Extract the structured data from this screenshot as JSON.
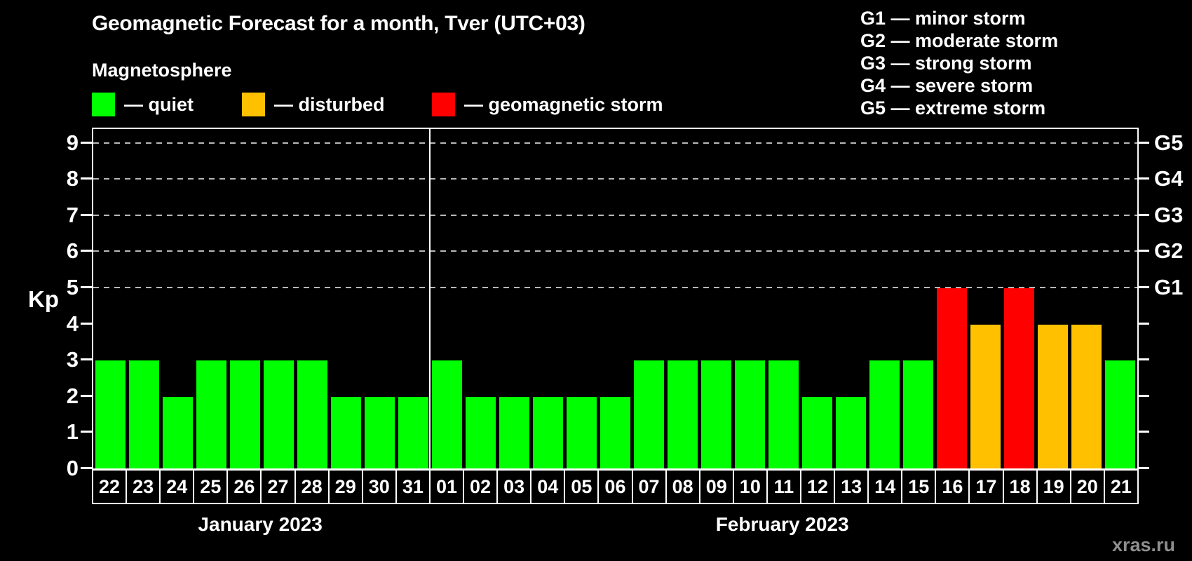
{
  "title": "Geomagnetic Forecast for a month, Tver (UTC+03)",
  "subtitle": "Magnetosphere",
  "watermark": "xras.ru",
  "status_legend": {
    "items": [
      {
        "id": "quiet",
        "label": "— quiet",
        "color": "#00ff00"
      },
      {
        "id": "disturbed",
        "label": "— disturbed",
        "color": "#ffc000"
      },
      {
        "id": "storm",
        "label": "— geomagnetic storm",
        "color": "#ff0000"
      }
    ]
  },
  "g_scale_legend": {
    "items": [
      "G1 — minor storm",
      "G2 — moderate storm",
      "G3 — strong storm",
      "G4 — severe storm",
      "G5 — extreme storm"
    ]
  },
  "chart_data": {
    "type": "bar",
    "title": "Geomagnetic Forecast for a month, Tver (UTC+03)",
    "ylabel": "Kp",
    "ylim": [
      0,
      9
    ],
    "grid": "dashed horizontal at storm levels only",
    "legend_position": "top",
    "y_ticks": [
      0,
      1,
      2,
      3,
      4,
      5,
      6,
      7,
      8,
      9
    ],
    "grid_levels": [
      5,
      6,
      7,
      8,
      9
    ],
    "right_axis_labels": [
      {
        "kp": 5,
        "label": "G1"
      },
      {
        "kp": 6,
        "label": "G2"
      },
      {
        "kp": 7,
        "label": "G3"
      },
      {
        "kp": 8,
        "label": "G4"
      },
      {
        "kp": 9,
        "label": "G5"
      }
    ],
    "status_colors": {
      "quiet": "#00ff00",
      "disturbed": "#ffc000",
      "storm": "#ff0000"
    },
    "months": [
      {
        "label": "January 2023",
        "days": 10
      },
      {
        "label": "February 2023",
        "days": 21
      }
    ],
    "points": [
      {
        "day": "22",
        "kp": 3,
        "status": "quiet"
      },
      {
        "day": "23",
        "kp": 3,
        "status": "quiet"
      },
      {
        "day": "24",
        "kp": 2,
        "status": "quiet"
      },
      {
        "day": "25",
        "kp": 3,
        "status": "quiet"
      },
      {
        "day": "26",
        "kp": 3,
        "status": "quiet"
      },
      {
        "day": "27",
        "kp": 3,
        "status": "quiet"
      },
      {
        "day": "28",
        "kp": 3,
        "status": "quiet"
      },
      {
        "day": "29",
        "kp": 2,
        "status": "quiet"
      },
      {
        "day": "30",
        "kp": 2,
        "status": "quiet"
      },
      {
        "day": "31",
        "kp": 2,
        "status": "quiet"
      },
      {
        "day": "01",
        "kp": 3,
        "status": "quiet"
      },
      {
        "day": "02",
        "kp": 2,
        "status": "quiet"
      },
      {
        "day": "03",
        "kp": 2,
        "status": "quiet"
      },
      {
        "day": "04",
        "kp": 2,
        "status": "quiet"
      },
      {
        "day": "05",
        "kp": 2,
        "status": "quiet"
      },
      {
        "day": "06",
        "kp": 2,
        "status": "quiet"
      },
      {
        "day": "07",
        "kp": 3,
        "status": "quiet"
      },
      {
        "day": "08",
        "kp": 3,
        "status": "quiet"
      },
      {
        "day": "09",
        "kp": 3,
        "status": "quiet"
      },
      {
        "day": "10",
        "kp": 3,
        "status": "quiet"
      },
      {
        "day": "11",
        "kp": 3,
        "status": "quiet"
      },
      {
        "day": "12",
        "kp": 2,
        "status": "quiet"
      },
      {
        "day": "13",
        "kp": 2,
        "status": "quiet"
      },
      {
        "day": "14",
        "kp": 3,
        "status": "quiet"
      },
      {
        "day": "15",
        "kp": 3,
        "status": "quiet"
      },
      {
        "day": "16",
        "kp": 5,
        "status": "storm"
      },
      {
        "day": "17",
        "kp": 4,
        "status": "disturbed"
      },
      {
        "day": "18",
        "kp": 5,
        "status": "storm"
      },
      {
        "day": "19",
        "kp": 4,
        "status": "disturbed"
      },
      {
        "day": "20",
        "kp": 4,
        "status": "disturbed"
      },
      {
        "day": "21",
        "kp": 3,
        "status": "quiet"
      }
    ]
  }
}
